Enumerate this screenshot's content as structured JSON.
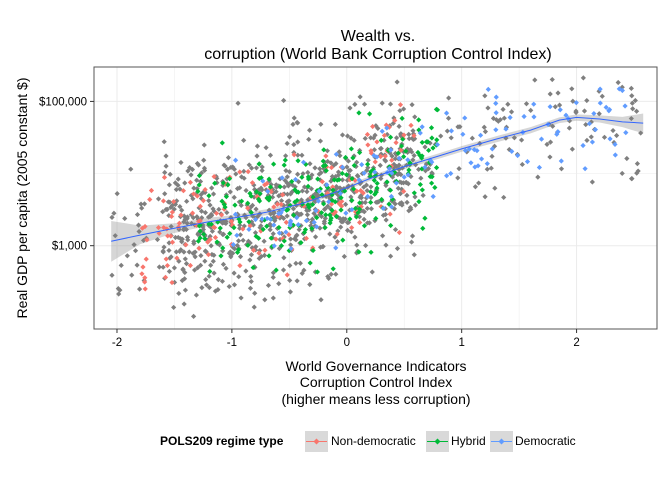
{
  "chart_data": {
    "type": "scatter",
    "title_lines": [
      "Wealth vs.",
      "corruption (World Bank Corruption Control Index)"
    ],
    "xlabel_lines": [
      "World Governance Indicators",
      "Corruption Control Index",
      "(higher means less corruption)"
    ],
    "ylabel": "Real GDP per capita (2005 constant $)",
    "x_ticks": [
      -2,
      -1,
      0,
      1,
      2
    ],
    "x_tick_labels": [
      "-2",
      "-1",
      "0",
      "1",
      "2"
    ],
    "y_ticks": [
      1000,
      100000
    ],
    "y_tick_labels": [
      "$1,000",
      "$100,000"
    ],
    "xlim": [
      -2.2,
      2.7
    ],
    "ylim": [
      70,
      300000
    ],
    "y_scale": "log10",
    "grid": true,
    "legend": {
      "title": "POLS209 regime type",
      "position": "bottom",
      "entries": [
        "Non-democratic",
        "Hybrid",
        "Democratic"
      ]
    },
    "colors": {
      "no_regime": "#7f7f7f",
      "Non-democratic": "#f8766d",
      "Hybrid": "#00ba38",
      "Democratic": "#619cff",
      "smooth": "#3366ff",
      "ribbon": "#999999",
      "panel_border": "#555555",
      "grid": "#ebebeb"
    },
    "smooth_curve": [
      [
        -2.05,
        1150
      ],
      [
        -1.8,
        1400
      ],
      [
        -1.5,
        1750
      ],
      [
        -1.2,
        2150
      ],
      [
        -1.0,
        2400
      ],
      [
        -0.7,
        2900
      ],
      [
        -0.4,
        3800
      ],
      [
        -0.1,
        5500
      ],
      [
        0.2,
        8500
      ],
      [
        0.5,
        12500
      ],
      [
        0.8,
        17500
      ],
      [
        1.0,
        22000
      ],
      [
        1.3,
        30000
      ],
      [
        1.6,
        40000
      ],
      [
        1.85,
        55000
      ],
      [
        2.0,
        60000
      ],
      [
        2.2,
        57000
      ],
      [
        2.4,
        52000
      ],
      [
        2.58,
        50000
      ]
    ],
    "ribbon_lower": [
      [
        -2.05,
        600
      ],
      [
        -1.8,
        1050
      ],
      [
        -1.5,
        1500
      ],
      [
        -1.2,
        1900
      ],
      [
        -1.0,
        2200
      ],
      [
        -0.7,
        2650
      ],
      [
        -0.4,
        3500
      ],
      [
        -0.1,
        5100
      ],
      [
        0.2,
        7900
      ],
      [
        0.5,
        11500
      ],
      [
        0.8,
        16000
      ],
      [
        1.0,
        20000
      ],
      [
        1.3,
        27000
      ],
      [
        1.6,
        36000
      ],
      [
        1.85,
        50000
      ],
      [
        2.0,
        54000
      ],
      [
        2.2,
        51000
      ],
      [
        2.4,
        44000
      ],
      [
        2.58,
        36000
      ]
    ],
    "ribbon_upper": [
      [
        -2.05,
        2200
      ],
      [
        -1.8,
        1900
      ],
      [
        -1.5,
        2050
      ],
      [
        -1.2,
        2450
      ],
      [
        -1.0,
        2650
      ],
      [
        -0.7,
        3200
      ],
      [
        -0.4,
        4150
      ],
      [
        -0.1,
        6000
      ],
      [
        0.2,
        9200
      ],
      [
        0.5,
        13600
      ],
      [
        0.8,
        19000
      ],
      [
        1.0,
        24000
      ],
      [
        1.3,
        33000
      ],
      [
        1.6,
        44000
      ],
      [
        1.85,
        60000
      ],
      [
        2.0,
        66000
      ],
      [
        2.2,
        64000
      ],
      [
        2.4,
        61000
      ],
      [
        2.58,
        68000
      ]
    ],
    "point_clouds": [
      {
        "group": "no_regime",
        "count": 900,
        "seed": 11,
        "x_range": [
          -2.05,
          2.58
        ],
        "y_noise": 0.5
      },
      {
        "group": "Non-democratic",
        "count": 150,
        "seed": 23,
        "x_range": [
          -1.8,
          0.6
        ],
        "y_noise": 0.42
      },
      {
        "group": "Hybrid",
        "count": 230,
        "seed": 37,
        "x_range": [
          -1.3,
          0.8
        ],
        "y_noise": 0.38
      },
      {
        "group": "Democratic",
        "count": 130,
        "seed": 51,
        "x_range": [
          -1.0,
          2.5
        ],
        "y_noise": 0.3
      }
    ]
  }
}
